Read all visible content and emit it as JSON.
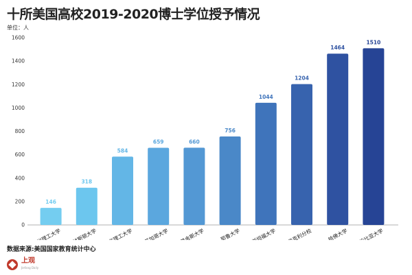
{
  "header": {
    "title": "十所美国高校2019-2020博士学位授予情况",
    "unit": "单位：人"
  },
  "footer": {
    "source": "数据来源:美国国家教育统计中心",
    "logo_main": "上观",
    "logo_sub": "Jiefang Daily"
  },
  "chart_data": {
    "type": "bar",
    "title": "十所美国高校2019-2020博士学位授予情况",
    "ylabel": "单位：人",
    "xlabel": "",
    "ylim": [
      0,
      1600
    ],
    "yticks": [
      0,
      200,
      400,
      600,
      800,
      1000,
      1200,
      1400,
      1600
    ],
    "grid": false,
    "categories": [
      "加州理工大学",
      "普林斯顿大学",
      "麻省理工大学",
      "芝加哥大学",
      "约翰霍普金斯大学",
      "耶鲁大学",
      "斯坦福大学",
      "加州大学伯克利分校",
      "哈佛大学",
      "哥伦比亚大学"
    ],
    "values": [
      146,
      318,
      584,
      659,
      660,
      756,
      1044,
      1204,
      1464,
      1510
    ],
    "colors": [
      "#74cdf0",
      "#6cc6ee",
      "#63b6e6",
      "#5ba7de",
      "#5398d4",
      "#4a88c8",
      "#3f74bb",
      "#3763ae",
      "#2f52a1",
      "#264495"
    ]
  }
}
